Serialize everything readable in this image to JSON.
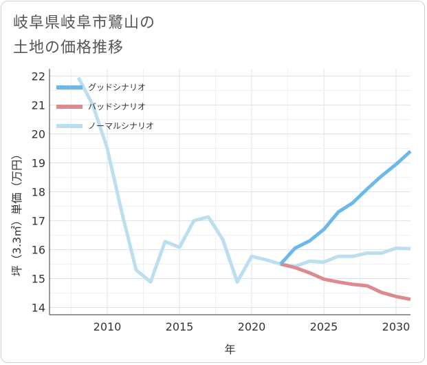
{
  "title": {
    "line1": "岐阜県岐阜市鷺山の",
    "line2": "土地の価格推移"
  },
  "chart_data": {
    "type": "line",
    "xlabel": "年",
    "ylabel": "坪（3.3㎡）単価（万円）",
    "xlim": [
      2006,
      2031
    ],
    "ylim": [
      13.75,
      22.25
    ],
    "x_ticks": [
      2010,
      2015,
      2020,
      2025,
      2030
    ],
    "y_ticks": [
      14,
      15,
      16,
      17,
      18,
      19,
      20,
      21,
      22
    ],
    "grid": true,
    "legend_position": "top-left",
    "series": [
      {
        "name": "グッドシナリオ",
        "color": "#6cb8ea",
        "points": [
          [
            2022,
            15.5
          ],
          [
            2023,
            16.05
          ],
          [
            2024,
            16.3
          ],
          [
            2025,
            16.7
          ],
          [
            2026,
            17.3
          ],
          [
            2027,
            17.62
          ],
          [
            2028,
            18.1
          ],
          [
            2029,
            18.55
          ],
          [
            2030,
            18.95
          ],
          [
            2031,
            19.4
          ]
        ]
      },
      {
        "name": "バッドシナリオ",
        "color": "#dc8a90",
        "points": [
          [
            2022,
            15.5
          ],
          [
            2023,
            15.38
          ],
          [
            2024,
            15.2
          ],
          [
            2025,
            14.98
          ],
          [
            2026,
            14.88
          ],
          [
            2027,
            14.8
          ],
          [
            2028,
            14.75
          ],
          [
            2029,
            14.52
          ],
          [
            2030,
            14.38
          ],
          [
            2031,
            14.28
          ]
        ]
      },
      {
        "name": "ノーマルシナリオ",
        "color": "#bcdff0",
        "points": [
          [
            2008,
            21.95
          ],
          [
            2009,
            21.0
          ],
          [
            2010,
            19.5
          ],
          [
            2011,
            17.3
          ],
          [
            2012,
            15.3
          ],
          [
            2013,
            14.88
          ],
          [
            2014,
            16.28
          ],
          [
            2015,
            16.08
          ],
          [
            2016,
            17.0
          ],
          [
            2017,
            17.13
          ],
          [
            2018,
            16.35
          ],
          [
            2019,
            14.88
          ],
          [
            2020,
            15.77
          ],
          [
            2021,
            15.65
          ],
          [
            2022,
            15.5
          ],
          [
            2023,
            15.42
          ],
          [
            2024,
            15.6
          ],
          [
            2025,
            15.57
          ],
          [
            2026,
            15.77
          ],
          [
            2027,
            15.77
          ],
          [
            2028,
            15.88
          ],
          [
            2029,
            15.88
          ],
          [
            2030,
            16.05
          ],
          [
            2031,
            16.03
          ]
        ]
      }
    ]
  }
}
